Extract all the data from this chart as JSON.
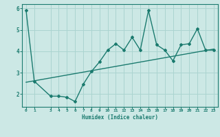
{
  "xlabel": "Humidex (Indice chaleur)",
  "ylabel": "",
  "background_color": "#cce8e5",
  "line_color": "#1a7a6e",
  "grid_color": "#aad4d0",
  "x_data": [
    0,
    1,
    3,
    4,
    5,
    6,
    7,
    8,
    9,
    10,
    11,
    12,
    13,
    14,
    15,
    16,
    17,
    18,
    19,
    20,
    21,
    22,
    23
  ],
  "y_data": [
    5.9,
    2.6,
    1.9,
    1.9,
    1.85,
    1.65,
    2.45,
    3.05,
    3.5,
    4.05,
    4.35,
    4.05,
    4.65,
    4.05,
    5.9,
    4.3,
    4.05,
    3.55,
    4.3,
    4.35,
    5.05,
    4.05,
    4.05
  ],
  "trend_x": [
    0,
    23
  ],
  "trend_y": [
    2.55,
    4.1
  ],
  "xlim": [
    -0.5,
    23.5
  ],
  "ylim": [
    1.4,
    6.2
  ],
  "yticks": [
    2,
    3,
    4,
    5,
    6
  ],
  "xticks": [
    0,
    1,
    3,
    4,
    5,
    6,
    7,
    8,
    9,
    10,
    11,
    12,
    13,
    14,
    15,
    16,
    17,
    18,
    19,
    20,
    21,
    22,
    23
  ]
}
